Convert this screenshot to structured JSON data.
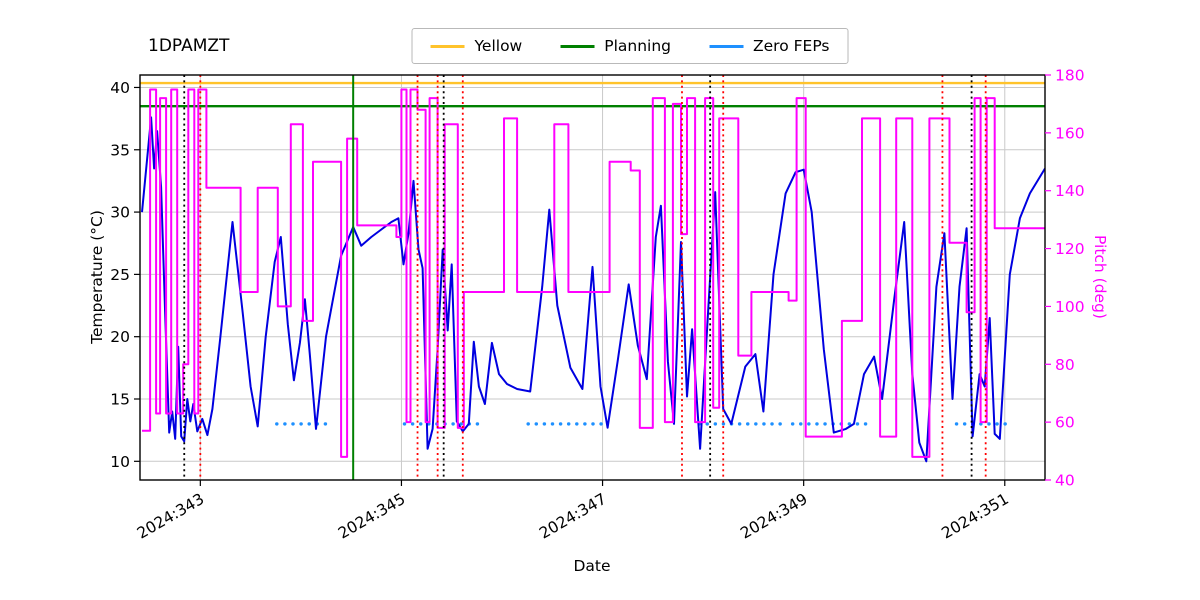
{
  "figure": {
    "title": "1DPAMZT",
    "xlabel": "Date",
    "ylabel_left": "Temperature (°C)",
    "ylabel_right": "Pitch (deg)"
  },
  "legend": {
    "position": "top-center",
    "items": [
      {
        "label": "Yellow",
        "color": "#ffc32b"
      },
      {
        "label": "Planning",
        "color": "#008000"
      },
      {
        "label": "Zero FEPs",
        "color": "#1e90ff"
      }
    ]
  },
  "chart_data": {
    "type": "line",
    "title": "1DPAMZT",
    "xlabel": "Date",
    "ylabel_left": "Temperature (°C)",
    "ylabel_right": "Pitch (deg)",
    "grid": true,
    "xlim": [
      342.4,
      351.4
    ],
    "ylim_left": [
      8.5,
      41
    ],
    "ylim_right": [
      40,
      180
    ],
    "xticks": [
      {
        "value": 343,
        "label": "2024:343"
      },
      {
        "value": 345,
        "label": "2024:345"
      },
      {
        "value": 347,
        "label": "2024:347"
      },
      {
        "value": 349,
        "label": "2024:349"
      },
      {
        "value": 351,
        "label": "2024:351"
      }
    ],
    "yticks_left": [
      10,
      15,
      20,
      25,
      30,
      35,
      40
    ],
    "yticks_right": [
      40,
      60,
      80,
      100,
      120,
      140,
      160,
      180
    ],
    "colors": {
      "temperature": "#0000e0",
      "pitch": "#ff00ff",
      "yellow_limit": "#ffc32b",
      "planning_limit": "#008000",
      "zero_feps": "#1e90ff",
      "grid": "#c9c9c9",
      "red_marker": "#ff0000",
      "black_marker": "#000000"
    },
    "hlines": [
      {
        "name": "yellow_limit",
        "y": 40.35,
        "axis": "left",
        "color": "#ffc32b",
        "style": "solid",
        "width": 2.4
      },
      {
        "name": "planning_limit",
        "y": 38.5,
        "axis": "left",
        "color": "#008000",
        "style": "solid",
        "width": 2.4
      }
    ],
    "vlines": [
      {
        "name": "green_marker",
        "x": 344.52,
        "color": "#008000",
        "style": "solid",
        "width": 2
      },
      {
        "name": "black_dotted",
        "x": 342.84,
        "color": "#000000",
        "style": "dotted",
        "width": 1.8
      },
      {
        "name": "black_dotted",
        "x": 345.42,
        "color": "#000000",
        "style": "dotted",
        "width": 1.8
      },
      {
        "name": "black_dotted",
        "x": 348.07,
        "color": "#000000",
        "style": "dotted",
        "width": 1.8
      },
      {
        "name": "black_dotted",
        "x": 350.67,
        "color": "#000000",
        "style": "dotted",
        "width": 1.8
      },
      {
        "name": "red_dotted",
        "x": 343.0,
        "color": "#ff0000",
        "style": "dotted",
        "width": 1.8
      },
      {
        "name": "red_dotted",
        "x": 345.16,
        "color": "#ff0000",
        "style": "dotted",
        "width": 1.8
      },
      {
        "name": "red_dotted",
        "x": 345.36,
        "color": "#ff0000",
        "style": "dotted",
        "width": 1.8
      },
      {
        "name": "red_dotted",
        "x": 345.61,
        "color": "#ff0000",
        "style": "dotted",
        "width": 1.8
      },
      {
        "name": "red_dotted",
        "x": 347.79,
        "color": "#ff0000",
        "style": "dotted",
        "width": 1.8
      },
      {
        "name": "red_dotted",
        "x": 348.2,
        "color": "#ff0000",
        "style": "dotted",
        "width": 1.8
      },
      {
        "name": "red_dotted",
        "x": 350.38,
        "color": "#ff0000",
        "style": "dotted",
        "width": 1.8
      },
      {
        "name": "red_dotted",
        "x": 350.81,
        "color": "#ff0000",
        "style": "dotted",
        "width": 1.8
      }
    ],
    "segments": [
      {
        "name": "zero_feps",
        "axis": "left",
        "y": 13,
        "color": "#1e90ff",
        "style": "dotted",
        "width": 3.4,
        "spans": [
          [
            343.76,
            344.31
          ],
          [
            345.03,
            345.82
          ],
          [
            346.26,
            347.0
          ],
          [
            347.96,
            348.79
          ],
          [
            348.89,
            349.66
          ],
          [
            350.52,
            351.02
          ]
        ]
      }
    ],
    "series": [
      {
        "name": "temperature",
        "axis": "left",
        "color": "#0000e0",
        "mode": "linear",
        "width": 2,
        "x": [
          342.42,
          342.48,
          342.51,
          342.54,
          342.57,
          342.61,
          342.65,
          342.69,
          342.72,
          342.75,
          342.78,
          342.81,
          342.84,
          342.87,
          342.9,
          342.93,
          342.97,
          343.02,
          343.07,
          343.12,
          343.2,
          343.32,
          343.42,
          343.5,
          343.57,
          343.65,
          343.74,
          343.8,
          343.87,
          343.93,
          343.99,
          344.04,
          344.09,
          344.15,
          344.25,
          344.4,
          344.52,
          344.6,
          344.7,
          344.8,
          344.9,
          344.97,
          345.02,
          345.07,
          345.12,
          345.17,
          345.21,
          345.26,
          345.31,
          345.36,
          345.41,
          345.46,
          345.5,
          345.55,
          345.61,
          345.67,
          345.72,
          345.77,
          345.83,
          345.9,
          345.97,
          346.05,
          346.15,
          346.28,
          346.4,
          346.47,
          346.55,
          346.68,
          346.8,
          346.9,
          346.98,
          347.05,
          347.15,
          347.26,
          347.35,
          347.44,
          347.53,
          347.58,
          347.65,
          347.71,
          347.78,
          347.84,
          347.89,
          347.97,
          348.05,
          348.12,
          348.2,
          348.28,
          348.42,
          348.52,
          348.6,
          348.7,
          348.82,
          348.92,
          349.0,
          349.08,
          349.2,
          349.3,
          349.42,
          349.5,
          349.6,
          349.7,
          349.78,
          349.9,
          350.0,
          350.08,
          350.15,
          350.22,
          350.32,
          350.4,
          350.48,
          350.55,
          350.62,
          350.68,
          350.75,
          350.8,
          350.85,
          350.9,
          350.95,
          351.05,
          351.15,
          351.25,
          351.4
        ],
        "y": [
          30,
          35,
          37.6,
          33.5,
          36.5,
          32,
          22,
          12.3,
          14,
          11.8,
          19.2,
          12,
          11.6,
          15,
          13.2,
          14.6,
          12.4,
          13.4,
          12.1,
          14.2,
          20,
          29.2,
          22,
          16,
          12.8,
          20,
          26,
          28,
          21,
          16.5,
          19.5,
          23,
          18.5,
          12.6,
          20,
          26.5,
          28.8,
          27.3,
          28,
          28.6,
          29.2,
          29.5,
          25.8,
          28.3,
          32.5,
          27,
          25.5,
          11,
          12.6,
          19,
          27,
          20.5,
          25.8,
          13.2,
          12.4,
          13,
          19.6,
          16,
          14.6,
          19.5,
          17,
          16.2,
          15.8,
          15.6,
          24,
          30.2,
          22.5,
          17.5,
          15.8,
          25.6,
          16,
          12.7,
          18,
          24.2,
          19.3,
          16.6,
          28,
          30.5,
          18,
          13,
          27.6,
          15.2,
          20.6,
          11,
          22,
          31.6,
          14.2,
          13,
          17.6,
          18.6,
          14,
          25,
          31.5,
          33.2,
          33.4,
          30,
          19,
          12.3,
          12.6,
          13,
          17,
          18.4,
          15,
          23,
          29.2,
          17,
          11.5,
          10,
          24,
          28.3,
          15,
          24,
          28.7,
          12,
          17,
          16,
          21.5,
          12.2,
          11.8,
          25,
          29.5,
          31.5,
          33.5
        ]
      },
      {
        "name": "pitch",
        "axis": "right",
        "color": "#ff00ff",
        "mode": "step",
        "width": 2,
        "x": [
          342.42,
          342.5,
          342.56,
          342.6,
          342.66,
          342.71,
          342.77,
          342.83,
          342.88,
          342.94,
          342.98,
          343.06,
          343.4,
          343.57,
          343.77,
          343.9,
          344.02,
          344.12,
          344.4,
          344.46,
          344.56,
          344.95,
          345.0,
          345.05,
          345.09,
          345.16,
          345.24,
          345.28,
          345.36,
          345.43,
          345.56,
          345.62,
          346.02,
          346.15,
          346.52,
          346.66,
          347.07,
          347.28,
          347.37,
          347.5,
          347.62,
          347.7,
          347.78,
          347.84,
          347.92,
          348.02,
          348.1,
          348.16,
          348.35,
          348.48,
          348.85,
          348.93,
          349.02,
          349.38,
          349.58,
          349.76,
          349.92,
          350.08,
          350.25,
          350.45,
          350.62,
          350.7,
          350.76,
          350.82,
          350.9,
          351.4
        ],
        "y": [
          57,
          175,
          63,
          172,
          63,
          175,
          63,
          80,
          175,
          63,
          175,
          141,
          105,
          141,
          100,
          163,
          95,
          150,
          48,
          158,
          128,
          124,
          175,
          60,
          175,
          168,
          60,
          172,
          58,
          163,
          58,
          105,
          165,
          105,
          163,
          105,
          150,
          147,
          58,
          172,
          60,
          170,
          125,
          172,
          60,
          172,
          65,
          165,
          83,
          105,
          102,
          172,
          55,
          95,
          165,
          55,
          165,
          48,
          165,
          122,
          98,
          172,
          60,
          172,
          127,
          127
        ]
      }
    ]
  }
}
